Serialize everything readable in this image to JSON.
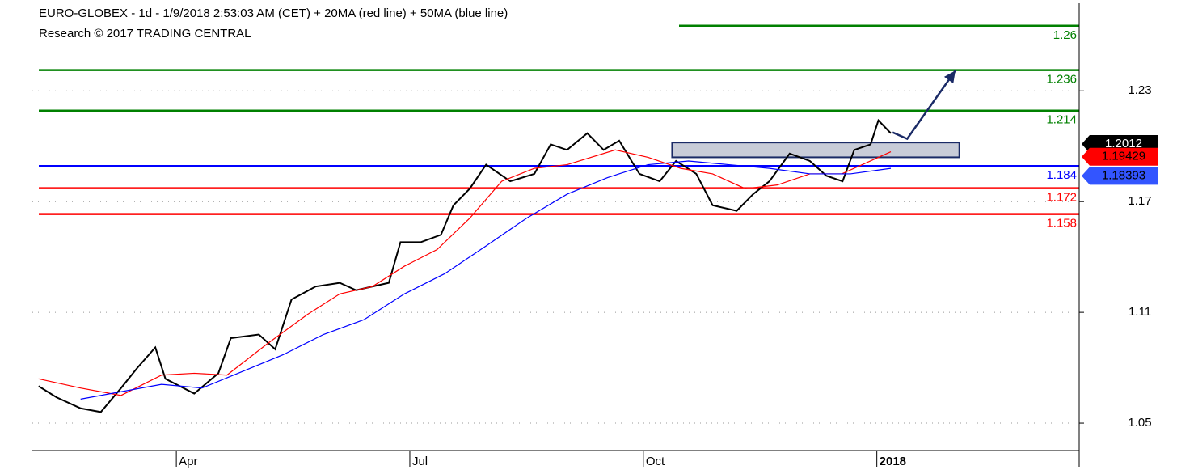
{
  "chart_data": {
    "type": "line",
    "title": "EURO-GLOBEX - 1d - 1/9/2018 2:53:03 AM (CET) + 20MA (red line) + 50MA (blue line)",
    "subtitle": "Research © 2017 TRADING CENTRAL",
    "xlim": [
      1.15,
      14.6
    ],
    "xticks": [
      {
        "value": 3,
        "label": "Apr"
      },
      {
        "value": 6,
        "label": "Jul"
      },
      {
        "value": 9,
        "label": "Oct"
      },
      {
        "value": 12,
        "label": "2018"
      }
    ],
    "ylim": [
      1.036,
      1.277
    ],
    "yticks": [
      1.05,
      1.11,
      1.17,
      1.23
    ],
    "grid": true,
    "series": [
      {
        "name": "Price",
        "color": "#000000",
        "last_value": 1.2012,
        "x": [
          1.23,
          1.46,
          1.77,
          2.03,
          2.29,
          2.5,
          2.73,
          2.86,
          3.23,
          3.54,
          3.7,
          4.06,
          4.27,
          4.48,
          4.79,
          5.1,
          5.31,
          5.73,
          5.88,
          6.14,
          6.4,
          6.56,
          6.77,
          6.98,
          7.29,
          7.6,
          7.81,
          8.02,
          8.28,
          8.49,
          8.69,
          8.95,
          9.21,
          9.42,
          9.68,
          9.89,
          10.2,
          10.41,
          10.62,
          10.88,
          11.14,
          11.35,
          11.56,
          11.71,
          11.92,
          12.02,
          12.18
        ],
        "values": [
          1.07,
          1.064,
          1.058,
          1.056,
          1.069,
          1.08,
          1.091,
          1.074,
          1.066,
          1.077,
          1.096,
          1.098,
          1.09,
          1.117,
          1.124,
          1.126,
          1.122,
          1.126,
          1.148,
          1.148,
          1.152,
          1.168,
          1.177,
          1.19,
          1.181,
          1.185,
          1.201,
          1.198,
          1.207,
          1.198,
          1.203,
          1.185,
          1.181,
          1.192,
          1.185,
          1.168,
          1.165,
          1.174,
          1.181,
          1.196,
          1.192,
          1.184,
          1.181,
          1.198,
          1.201,
          1.214,
          1.207
        ]
      },
      {
        "name": "20MA",
        "color": "#ff0000",
        "last_value": 1.19429,
        "x": [
          1.23,
          1.77,
          2.29,
          2.81,
          3.23,
          3.65,
          4.17,
          4.69,
          5.1,
          5.52,
          5.93,
          6.35,
          6.77,
          7.18,
          7.6,
          8.02,
          8.64,
          9.06,
          9.48,
          9.89,
          10.31,
          10.72,
          11.14,
          11.55,
          12.18
        ],
        "values": [
          1.074,
          1.069,
          1.065,
          1.076,
          1.077,
          1.076,
          1.093,
          1.109,
          1.12,
          1.124,
          1.135,
          1.144,
          1.161,
          1.181,
          1.188,
          1.19,
          1.198,
          1.194,
          1.188,
          1.185,
          1.177,
          1.179,
          1.185,
          1.185,
          1.197
        ]
      },
      {
        "name": "50MA",
        "color": "#0000ff",
        "last_value": 1.18393,
        "x": [
          1.77,
          2.29,
          2.81,
          3.33,
          3.85,
          4.37,
          4.89,
          5.41,
          5.93,
          6.45,
          6.98,
          7.5,
          8.02,
          8.54,
          9.06,
          9.58,
          10.1,
          10.62,
          11.14,
          11.66,
          12.18
        ],
        "values": [
          1.063,
          1.067,
          1.071,
          1.069,
          1.078,
          1.087,
          1.098,
          1.106,
          1.12,
          1.131,
          1.146,
          1.161,
          1.174,
          1.183,
          1.19,
          1.192,
          1.19,
          1.188,
          1.185,
          1.185,
          1.188
        ]
      }
    ],
    "levels": [
      {
        "value": 1.26,
        "color": "#008000"
      },
      {
        "value": 1.236,
        "color": "#008000"
      },
      {
        "value": 1.214,
        "color": "#008000"
      },
      {
        "value": 1.184,
        "color": "#0000ff"
      },
      {
        "value": 1.172,
        "color": "#ff0000"
      },
      {
        "value": 1.158,
        "color": "#ff0000"
      }
    ],
    "box": {
      "x": [
        9.37,
        13.06
      ],
      "y": [
        1.194,
        1.202
      ],
      "color": "#c8ccd8"
    },
    "arrow": {
      "x": [
        12.39,
        13.01
      ],
      "y": [
        1.204,
        1.241
      ],
      "color": "#1a2a66"
    }
  }
}
